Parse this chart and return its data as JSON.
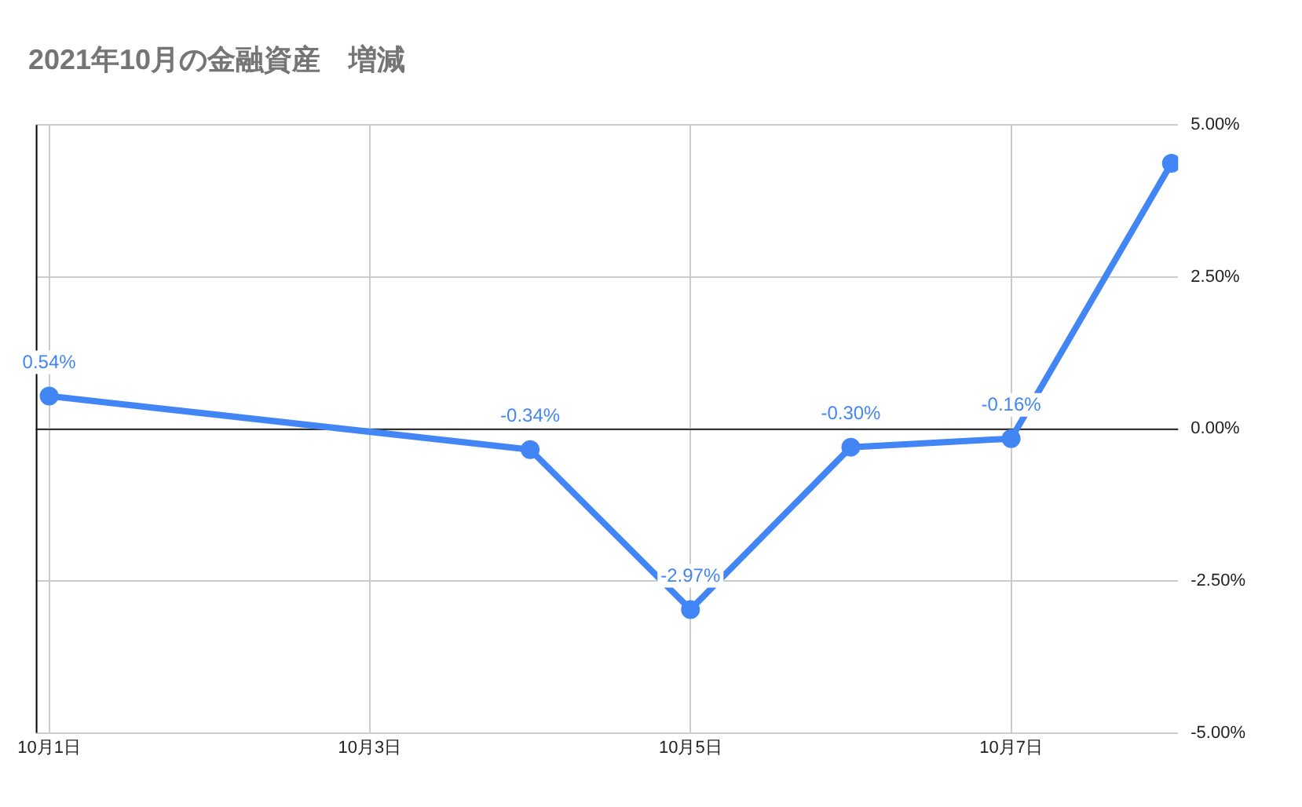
{
  "chart_data": {
    "type": "line",
    "title": "2021年10月の金融資産　増減",
    "x": [
      "2021-10-01",
      "2021-10-04",
      "2021-10-05",
      "2021-10-06",
      "2021-10-07",
      "2021-10-08"
    ],
    "values": [
      0.54,
      -0.34,
      -2.97,
      -0.3,
      -0.16,
      4.37
    ],
    "value_labels": [
      "0.54%",
      "-0.34%",
      "-2.97%",
      "-0.30%",
      "-0.16%",
      null
    ],
    "color": "#4285f4",
    "marker": "circle",
    "line_style": "solid",
    "xlim": [
      "2021-09-30T22:00",
      "2021-10-08T01:00"
    ],
    "xticks": [
      {
        "value": "2021-10-01",
        "label": "10月1日"
      },
      {
        "value": "2021-10-03",
        "label": "10月3日"
      },
      {
        "value": "2021-10-05",
        "label": "10月5日"
      },
      {
        "value": "2021-10-07",
        "label": "10月7日"
      }
    ],
    "ylim": [
      -5,
      5
    ],
    "yticks": [
      {
        "value": -5,
        "label": "-5.00%"
      },
      {
        "value": -2.5,
        "label": "-2.50%"
      },
      {
        "value": 0,
        "label": "0.00%"
      },
      {
        "value": 2.5,
        "label": "2.50%"
      },
      {
        "value": 5,
        "label": "5.00%"
      }
    ],
    "ref_lines": [
      {
        "axis": "y",
        "value": 0,
        "color": "#333333"
      }
    ],
    "grid": true,
    "legend": false
  }
}
